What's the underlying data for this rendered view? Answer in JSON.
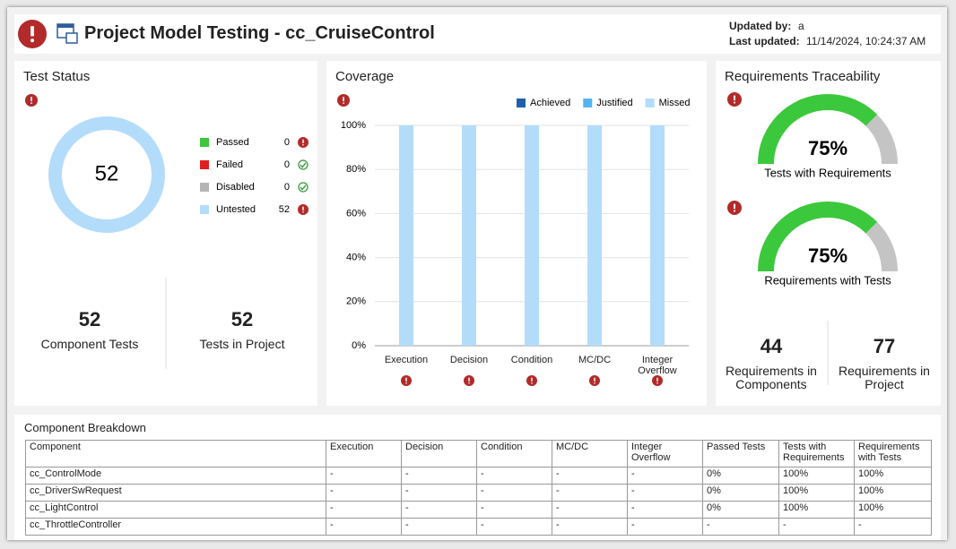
{
  "header": {
    "title": "Project Model Testing - cc_CruiseControl",
    "updated_by_label": "Updated by:",
    "updated_by": "a",
    "last_updated_label": "Last updated:",
    "last_updated": "11/14/2024, 10:24:37 AM"
  },
  "test_status": {
    "title": "Test Status",
    "chart_data": {
      "type": "pie",
      "total": 52,
      "categories": [
        "Passed",
        "Failed",
        "Disabled",
        "Untested"
      ],
      "values": [
        0,
        0,
        0,
        52
      ],
      "colors": [
        "#3cc83c",
        "#e02020",
        "#b4b4b4",
        "#b3dcfb"
      ]
    },
    "stats": [
      {
        "value": 52,
        "label": "Component Tests"
      },
      {
        "value": 52,
        "label": "Tests in Project"
      }
    ]
  },
  "coverage": {
    "chart_data": {
      "type": "bar",
      "stacked": true,
      "title": "Coverage",
      "categories": [
        "Execution",
        "Decision",
        "Condition",
        "MC/DC",
        "Integer Overflow"
      ],
      "series": [
        {
          "name": "Achieved",
          "color": "#1f5fad",
          "values": [
            0,
            0,
            0,
            0,
            0
          ]
        },
        {
          "name": "Justified",
          "color": "#56b4f0",
          "values": [
            0,
            0,
            0,
            0,
            0
          ]
        },
        {
          "name": "Missed",
          "color": "#b3dcfb",
          "values": [
            100,
            100,
            100,
            100,
            100
          ]
        }
      ],
      "ylim": [
        0,
        100
      ],
      "yticks": [
        {
          "value": 0,
          "label": "0%"
        },
        {
          "value": 20,
          "label": "20%"
        },
        {
          "value": 40,
          "label": "40%"
        },
        {
          "value": 60,
          "label": "60%"
        },
        {
          "value": 80,
          "label": "80%"
        },
        {
          "value": 100,
          "label": "100%"
        }
      ],
      "grid": true
    }
  },
  "traceability": {
    "title": "Requirements Traceability",
    "chart_data": {
      "type": "gauge",
      "categories": [
        "Tests with Requirements",
        "Requirements with Tests"
      ],
      "values": [
        75,
        75
      ],
      "value_labels": [
        "75%",
        "75%"
      ],
      "ylim": [
        0,
        100
      ],
      "color": "#3cc83c",
      "track_color": "#c4c4c4"
    },
    "stats": [
      {
        "value": 44,
        "label": "Requirements in Components"
      },
      {
        "value": 77,
        "label": "Requirements in Project"
      }
    ]
  },
  "breakdown": {
    "title": "Component Breakdown",
    "columns": [
      "Component",
      "Execution",
      "Decision",
      "Condition",
      "MC/DC",
      "Integer Overflow",
      "Passed Tests",
      "Tests with Requirements",
      "Requirements with Tests"
    ],
    "rows": [
      [
        "cc_ControlMode",
        "-",
        "-",
        "-",
        "-",
        "-",
        "0%",
        "100%",
        "100%"
      ],
      [
        "cc_DriverSwRequest",
        "-",
        "-",
        "-",
        "-",
        "-",
        "0%",
        "100%",
        "100%"
      ],
      [
        "cc_LightControl",
        "-",
        "-",
        "-",
        "-",
        "-",
        "0%",
        "100%",
        "100%"
      ],
      [
        "cc_ThrottleController",
        "-",
        "-",
        "-",
        "-",
        "-",
        "-",
        "-",
        "-"
      ]
    ]
  }
}
